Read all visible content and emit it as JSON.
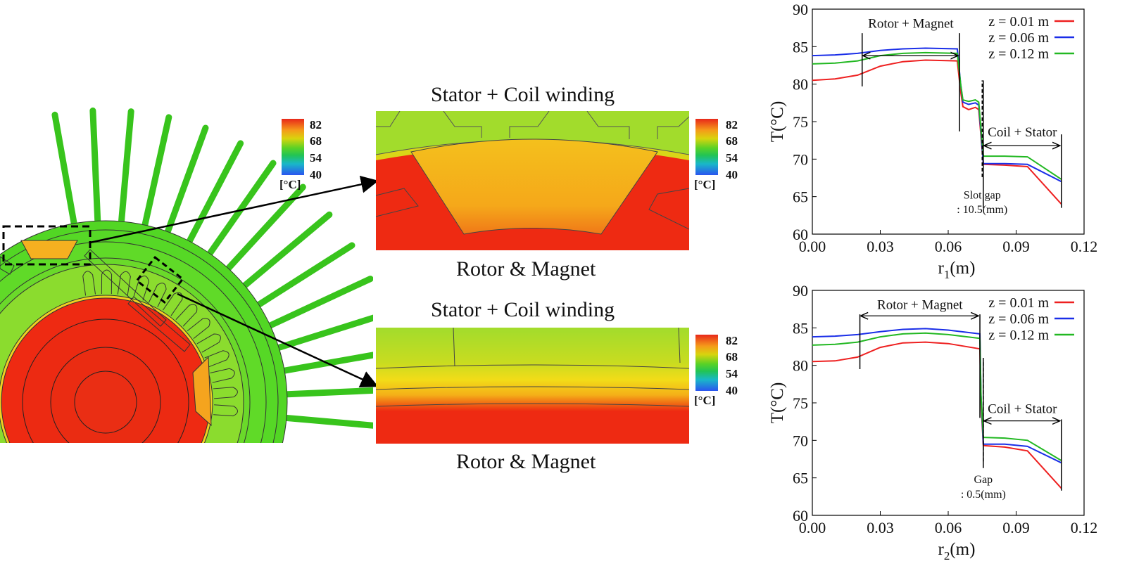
{
  "colorbar": {
    "ticks": [
      "82",
      "68",
      "54",
      "40"
    ],
    "unit": "[°C]"
  },
  "zoom_top": {
    "top_label": "Stator + Coil winding",
    "bottom_label": "Rotor & Magnet"
  },
  "zoom_bottom": {
    "top_label": "Stator + Coil winding",
    "bottom_label": "Rotor & Magnet"
  },
  "colors": {
    "z001": "#ee2020",
    "z006": "#1a2ee8",
    "z012": "#22b822"
  },
  "chart_data": [
    {
      "type": "line",
      "title": "",
      "xlabel": "r",
      "xlabel_sub": "1",
      "xlabel_unit": "(m)",
      "ylabel": "T(°C)",
      "xlim": [
        0,
        0.12
      ],
      "ylim": [
        60,
        90
      ],
      "xticks": [
        "0.00",
        "0.03",
        "0.06",
        "0.09",
        "0.12"
      ],
      "yticks": [
        "60",
        "65",
        "70",
        "75",
        "80",
        "85",
        "90"
      ],
      "series": [
        {
          "name": "z = 0.01 m",
          "color": "#ee2020",
          "points": [
            [
              0,
              80.5
            ],
            [
              0.01,
              80.7
            ],
            [
              0.02,
              81.2
            ],
            [
              0.03,
              82.4
            ],
            [
              0.04,
              83.0
            ],
            [
              0.05,
              83.2
            ],
            [
              0.064,
              83.1
            ],
            [
              0.0655,
              79
            ],
            [
              0.0665,
              77
            ],
            [
              0.069,
              76.6
            ],
            [
              0.072,
              76.9
            ],
            [
              0.0735,
              76.6
            ],
            [
              0.0745,
              73
            ],
            [
              0.0755,
              69.3
            ],
            [
              0.085,
              69.2
            ],
            [
              0.095,
              69.0
            ],
            [
              0.11,
              64.0
            ]
          ]
        },
        {
          "name": "z = 0.06 m",
          "color": "#1a2ee8",
          "points": [
            [
              0,
              83.8
            ],
            [
              0.01,
              83.9
            ],
            [
              0.02,
              84.1
            ],
            [
              0.03,
              84.5
            ],
            [
              0.04,
              84.7
            ],
            [
              0.05,
              84.8
            ],
            [
              0.064,
              84.7
            ],
            [
              0.0655,
              80
            ],
            [
              0.0665,
              77.6
            ],
            [
              0.069,
              77.3
            ],
            [
              0.072,
              77.5
            ],
            [
              0.0735,
              77.2
            ],
            [
              0.0745,
              73.5
            ],
            [
              0.0755,
              69.4
            ],
            [
              0.085,
              69.4
            ],
            [
              0.095,
              69.3
            ],
            [
              0.11,
              67.0
            ]
          ]
        },
        {
          "name": "z = 0.12 m",
          "color": "#22b822",
          "points": [
            [
              0,
              82.7
            ],
            [
              0.01,
              82.8
            ],
            [
              0.02,
              83.1
            ],
            [
              0.03,
              83.8
            ],
            [
              0.04,
              84.1
            ],
            [
              0.05,
              84.2
            ],
            [
              0.064,
              84.1
            ],
            [
              0.0655,
              80
            ],
            [
              0.0665,
              77.9
            ],
            [
              0.069,
              77.7
            ],
            [
              0.072,
              77.9
            ],
            [
              0.0735,
              77.6
            ],
            [
              0.0745,
              74
            ],
            [
              0.0755,
              70.4
            ],
            [
              0.085,
              70.4
            ],
            [
              0.095,
              70.3
            ],
            [
              0.11,
              67.3
            ]
          ]
        }
      ],
      "annotations": [
        {
          "text": "Rotor + Magnet",
          "x_from": 0.022,
          "x_to": 0.065,
          "y": 83.8,
          "label_y": 88.1,
          "bars": [
            [
              0.022,
              79.7,
              86.8
            ],
            [
              0.065,
              73.7,
              86.8
            ]
          ]
        },
        {
          "text": "Coil + Stator",
          "x_from": 0.0755,
          "x_to": 0.11,
          "y": 71.8,
          "label_y": 73.6,
          "bars": [
            [
              0.0755,
              63.5,
              80.5
            ],
            [
              0.11,
              63.5,
              73.3
            ]
          ]
        },
        {
          "text": "Slot gap",
          "text2": ": 10.5(mm)",
          "x": 0.075,
          "label_y": 65.2,
          "label2_y": 63.3
        }
      ]
    },
    {
      "type": "line",
      "title": "",
      "xlabel": "r",
      "xlabel_sub": "2",
      "xlabel_unit": "(m)",
      "ylabel": "T(°C)",
      "xlim": [
        0,
        0.12
      ],
      "ylim": [
        60,
        90
      ],
      "xticks": [
        "0.00",
        "0.03",
        "0.06",
        "0.09",
        "0.12"
      ],
      "yticks": [
        "60",
        "65",
        "70",
        "75",
        "80",
        "85",
        "90"
      ],
      "series": [
        {
          "name": "z = 0.01 m",
          "color": "#ee2020",
          "points": [
            [
              0,
              80.5
            ],
            [
              0.01,
              80.6
            ],
            [
              0.02,
              81.1
            ],
            [
              0.03,
              82.4
            ],
            [
              0.04,
              83.0
            ],
            [
              0.05,
              83.1
            ],
            [
              0.06,
              82.9
            ],
            [
              0.074,
              82.2
            ],
            [
              0.0745,
              75
            ],
            [
              0.0755,
              69.3
            ],
            [
              0.085,
              69.1
            ],
            [
              0.095,
              68.6
            ],
            [
              0.11,
              63.6
            ]
          ]
        },
        {
          "name": "z = 0.06 m",
          "color": "#1a2ee8",
          "points": [
            [
              0,
              83.8
            ],
            [
              0.01,
              83.9
            ],
            [
              0.02,
              84.1
            ],
            [
              0.03,
              84.5
            ],
            [
              0.04,
              84.8
            ],
            [
              0.05,
              84.9
            ],
            [
              0.06,
              84.7
            ],
            [
              0.074,
              84.2
            ],
            [
              0.0745,
              76
            ],
            [
              0.0755,
              69.5
            ],
            [
              0.085,
              69.5
            ],
            [
              0.095,
              69.2
            ],
            [
              0.11,
              67.0
            ]
          ]
        },
        {
          "name": "z = 0.12 m",
          "color": "#22b822",
          "points": [
            [
              0,
              82.7
            ],
            [
              0.01,
              82.8
            ],
            [
              0.02,
              83.1
            ],
            [
              0.03,
              83.8
            ],
            [
              0.04,
              84.2
            ],
            [
              0.05,
              84.3
            ],
            [
              0.06,
              84.1
            ],
            [
              0.074,
              83.6
            ],
            [
              0.0745,
              76
            ],
            [
              0.0755,
              70.4
            ],
            [
              0.085,
              70.3
            ],
            [
              0.095,
              70.0
            ],
            [
              0.11,
              67.3
            ]
          ]
        }
      ],
      "annotations": [
        {
          "text": "Rotor + Magnet",
          "x_from": 0.021,
          "x_to": 0.074,
          "y": 86.6,
          "label_y": 88.1,
          "bars": [
            [
              0.021,
              79.5,
              86.8
            ],
            [
              0.074,
              73.0,
              86.8
            ]
          ]
        },
        {
          "text": "Coil + Stator",
          "x_from": 0.0755,
          "x_to": 0.11,
          "y": 72.6,
          "label_y": 74.2,
          "bars": [
            [
              0.0755,
              66.3,
              81.0
            ],
            [
              0.11,
              63.3,
              72.8
            ]
          ]
        },
        {
          "text": "Gap",
          "text2": ": 0.5(mm)",
          "x": 0.0755,
          "label_y": 64.8,
          "label2_y": 62.8
        }
      ]
    }
  ]
}
